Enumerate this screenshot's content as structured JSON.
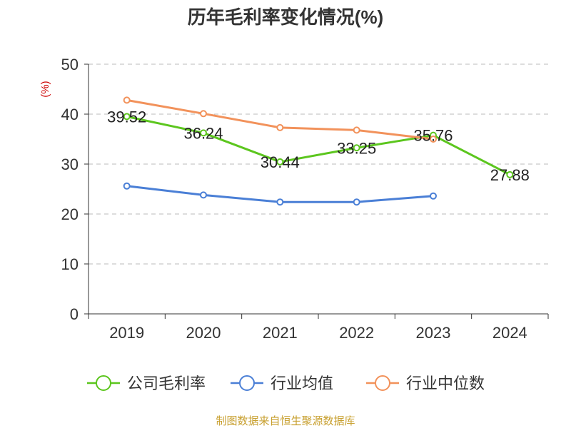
{
  "chart_data": {
    "type": "line",
    "title": "历年毛利率变化情况(%)",
    "ylabel": "(%)",
    "categories": [
      "2019",
      "2020",
      "2021",
      "2022",
      "2023",
      "2024"
    ],
    "ylim": [
      0,
      50
    ],
    "yticks": [
      "0",
      "10",
      "20",
      "30",
      "40",
      "50"
    ],
    "grid": true,
    "legend_position": "bottom",
    "series": [
      {
        "name": "公司毛利率",
        "color": "#5cc61e",
        "values": [
          39.52,
          36.24,
          30.44,
          33.25,
          35.76,
          27.88
        ],
        "labels": [
          "39.52",
          "36.24",
          "30.44",
          "33.25",
          "35.76",
          "27.88"
        ]
      },
      {
        "name": "行业均值",
        "color": "#4a7fd6",
        "values": [
          25.6,
          23.8,
          22.4,
          22.4,
          23.6,
          null
        ]
      },
      {
        "name": "行业中位数",
        "color": "#f2925b",
        "values": [
          42.8,
          40.1,
          37.3,
          36.8,
          35.0,
          null
        ]
      }
    ],
    "source": "制图数据来自恒生聚源数据库"
  }
}
